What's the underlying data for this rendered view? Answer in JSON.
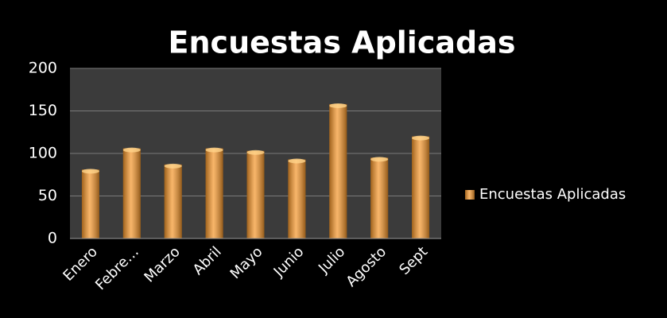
{
  "chart_data": {
    "type": "bar",
    "title": "Encuestas Aplicadas",
    "categories": [
      "Enero",
      "Febre…",
      "Marzo",
      "Abril",
      "Mayo",
      "Junio",
      "Julio",
      "Agosto",
      "Sept"
    ],
    "series": [
      {
        "name": "Encuestas Aplicadas",
        "color": "#f5962a",
        "values": [
          81,
          106,
          87,
          106,
          103,
          93,
          158,
          95,
          120
        ]
      }
    ],
    "ylim": [
      0,
      200
    ],
    "yticks": [
      0,
      50,
      100,
      150,
      200
    ],
    "grid": true,
    "legend": "right"
  }
}
